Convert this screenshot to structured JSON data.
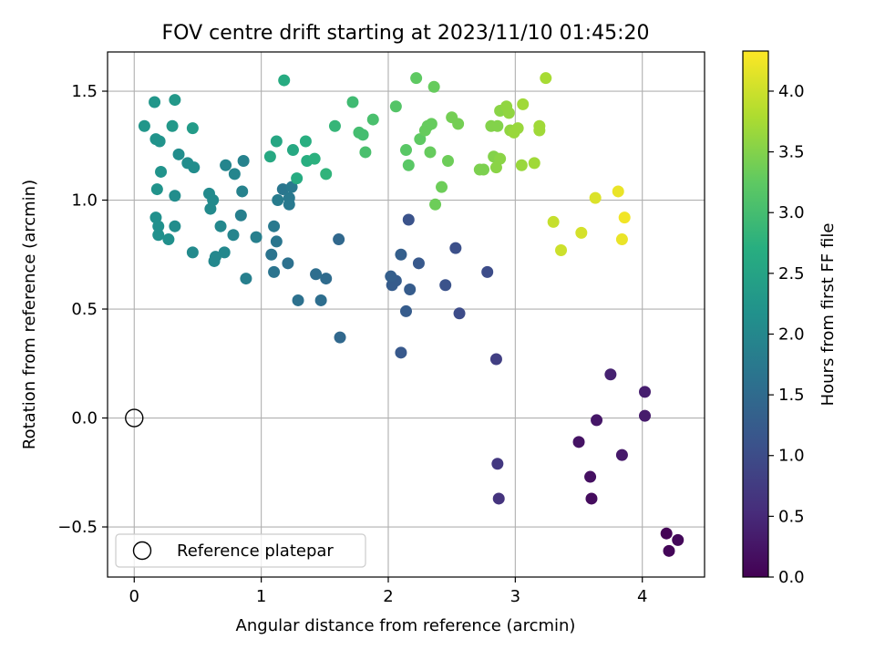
{
  "chart_data": {
    "type": "scatter",
    "title": "FOV centre drift starting at 2023/11/10 01:45:20",
    "xlabel": "Angular distance from reference (arcmin)",
    "ylabel": "Rotation from reference (arcmin)",
    "xlim": [
      -0.21,
      4.49
    ],
    "ylim": [
      -0.73,
      1.68
    ],
    "xticks": [
      0,
      1,
      2,
      3,
      4
    ],
    "xtick_labels": [
      "0",
      "1",
      "2",
      "3",
      "4"
    ],
    "yticks": [
      -0.5,
      0.0,
      0.5,
      1.0,
      1.5
    ],
    "ytick_labels": [
      "−0.5",
      "0.0",
      "0.5",
      "1.0",
      "1.5"
    ],
    "grid": true,
    "legend": {
      "position": "lower-left",
      "entries": [
        {
          "label": "Reference platepar",
          "marker": "open-circle"
        }
      ]
    },
    "colorbar": {
      "label": "Hours from first FF file",
      "colormap": "viridis",
      "range": [
        0.0,
        4.33
      ],
      "ticks": [
        0.0,
        0.5,
        1.0,
        1.5,
        2.0,
        2.5,
        3.0,
        3.5,
        4.0
      ],
      "tick_labels": [
        "0.0",
        "0.5",
        "1.0",
        "1.5",
        "2.0",
        "2.5",
        "3.0",
        "3.5",
        "4.0"
      ]
    },
    "reference_point": {
      "x": 0.0,
      "y": 0.0
    },
    "points": [
      {
        "x": 4.19,
        "y": -0.53,
        "c": 0.03
      },
      {
        "x": 4.21,
        "y": -0.61,
        "c": 0.06
      },
      {
        "x": 4.28,
        "y": -0.56,
        "c": 0.09
      },
      {
        "x": 3.6,
        "y": -0.37,
        "c": 0.14
      },
      {
        "x": 3.59,
        "y": -0.27,
        "c": 0.18
      },
      {
        "x": 3.5,
        "y": -0.11,
        "c": 0.22
      },
      {
        "x": 3.64,
        "y": -0.01,
        "c": 0.26
      },
      {
        "x": 3.84,
        "y": -0.17,
        "c": 0.3
      },
      {
        "x": 4.02,
        "y": 0.01,
        "c": 0.33
      },
      {
        "x": 4.02,
        "y": 0.12,
        "c": 0.36
      },
      {
        "x": 3.75,
        "y": 0.2,
        "c": 0.4
      },
      {
        "x": 2.87,
        "y": -0.37,
        "c": 0.65
      },
      {
        "x": 2.86,
        "y": -0.21,
        "c": 0.7
      },
      {
        "x": 2.85,
        "y": 0.27,
        "c": 0.8
      },
      {
        "x": 2.56,
        "y": 0.48,
        "c": 1.0
      },
      {
        "x": 2.78,
        "y": 0.67,
        "c": 1.0
      },
      {
        "x": 2.53,
        "y": 0.78,
        "c": 1.05
      },
      {
        "x": 2.45,
        "y": 0.61,
        "c": 1.1
      },
      {
        "x": 2.16,
        "y": 0.91,
        "c": 1.1
      },
      {
        "x": 2.1,
        "y": 0.3,
        "c": 1.2
      },
      {
        "x": 2.14,
        "y": 0.49,
        "c": 1.25
      },
      {
        "x": 2.24,
        "y": 0.71,
        "c": 1.2
      },
      {
        "x": 2.17,
        "y": 0.59,
        "c": 1.25
      },
      {
        "x": 2.03,
        "y": 0.61,
        "c": 1.25
      },
      {
        "x": 2.06,
        "y": 0.63,
        "c": 1.25
      },
      {
        "x": 2.02,
        "y": 0.65,
        "c": 1.3
      },
      {
        "x": 2.1,
        "y": 0.75,
        "c": 1.3
      },
      {
        "x": 1.62,
        "y": 0.37,
        "c": 1.45
      },
      {
        "x": 1.61,
        "y": 0.82,
        "c": 1.45
      },
      {
        "x": 1.51,
        "y": 0.64,
        "c": 1.5
      },
      {
        "x": 1.47,
        "y": 0.54,
        "c": 1.55
      },
      {
        "x": 1.43,
        "y": 0.66,
        "c": 1.55
      },
      {
        "x": 1.29,
        "y": 0.54,
        "c": 1.6
      },
      {
        "x": 1.21,
        "y": 0.71,
        "c": 1.6
      },
      {
        "x": 1.1,
        "y": 0.67,
        "c": 1.65
      },
      {
        "x": 1.08,
        "y": 0.75,
        "c": 1.65
      },
      {
        "x": 1.12,
        "y": 0.81,
        "c": 1.7
      },
      {
        "x": 1.1,
        "y": 0.88,
        "c": 1.75
      },
      {
        "x": 1.22,
        "y": 0.98,
        "c": 1.75
      },
      {
        "x": 1.17,
        "y": 1.05,
        "c": 1.7
      },
      {
        "x": 1.24,
        "y": 1.06,
        "c": 1.75
      },
      {
        "x": 1.22,
        "y": 1.01,
        "c": 1.75
      },
      {
        "x": 1.13,
        "y": 1.0,
        "c": 1.8
      },
      {
        "x": 0.96,
        "y": 0.83,
        "c": 1.85
      },
      {
        "x": 0.88,
        "y": 0.64,
        "c": 1.85
      },
      {
        "x": 0.84,
        "y": 0.93,
        "c": 1.85
      },
      {
        "x": 0.85,
        "y": 1.04,
        "c": 1.9
      },
      {
        "x": 0.86,
        "y": 1.18,
        "c": 1.9
      },
      {
        "x": 0.79,
        "y": 1.12,
        "c": 1.95
      },
      {
        "x": 0.72,
        "y": 1.16,
        "c": 1.95
      },
      {
        "x": 0.78,
        "y": 0.84,
        "c": 1.95
      },
      {
        "x": 0.71,
        "y": 0.76,
        "c": 2.0
      },
      {
        "x": 0.64,
        "y": 0.74,
        "c": 2.0
      },
      {
        "x": 0.63,
        "y": 0.72,
        "c": 2.0
      },
      {
        "x": 0.68,
        "y": 0.88,
        "c": 2.0
      },
      {
        "x": 0.59,
        "y": 1.03,
        "c": 2.05
      },
      {
        "x": 0.62,
        "y": 1.0,
        "c": 2.05
      },
      {
        "x": 0.6,
        "y": 0.96,
        "c": 2.05
      },
      {
        "x": 0.46,
        "y": 0.76,
        "c": 2.05
      },
      {
        "x": 0.47,
        "y": 1.15,
        "c": 2.1
      },
      {
        "x": 0.42,
        "y": 1.17,
        "c": 2.1
      },
      {
        "x": 0.35,
        "y": 1.21,
        "c": 2.1
      },
      {
        "x": 0.32,
        "y": 1.02,
        "c": 2.1
      },
      {
        "x": 0.32,
        "y": 0.88,
        "c": 2.1
      },
      {
        "x": 0.27,
        "y": 0.82,
        "c": 2.15
      },
      {
        "x": 0.19,
        "y": 0.84,
        "c": 2.15
      },
      {
        "x": 0.19,
        "y": 0.88,
        "c": 2.15
      },
      {
        "x": 0.17,
        "y": 0.92,
        "c": 2.15
      },
      {
        "x": 0.18,
        "y": 1.05,
        "c": 2.2
      },
      {
        "x": 0.21,
        "y": 1.13,
        "c": 2.2
      },
      {
        "x": 0.17,
        "y": 1.28,
        "c": 2.2
      },
      {
        "x": 0.2,
        "y": 1.27,
        "c": 2.2
      },
      {
        "x": 0.08,
        "y": 1.34,
        "c": 2.25
      },
      {
        "x": 0.16,
        "y": 1.45,
        "c": 2.25
      },
      {
        "x": 0.32,
        "y": 1.46,
        "c": 2.3
      },
      {
        "x": 0.3,
        "y": 1.34,
        "c": 2.3
      },
      {
        "x": 0.46,
        "y": 1.33,
        "c": 2.35
      },
      {
        "x": 1.18,
        "y": 1.55,
        "c": 2.65
      },
      {
        "x": 1.12,
        "y": 1.27,
        "c": 2.55
      },
      {
        "x": 1.07,
        "y": 1.2,
        "c": 2.6
      },
      {
        "x": 1.25,
        "y": 1.23,
        "c": 2.6
      },
      {
        "x": 1.28,
        "y": 1.1,
        "c": 2.65
      },
      {
        "x": 1.35,
        "y": 1.27,
        "c": 2.7
      },
      {
        "x": 1.36,
        "y": 1.18,
        "c": 2.7
      },
      {
        "x": 1.42,
        "y": 1.19,
        "c": 2.75
      },
      {
        "x": 1.51,
        "y": 1.12,
        "c": 2.8
      },
      {
        "x": 1.58,
        "y": 1.34,
        "c": 2.85
      },
      {
        "x": 1.72,
        "y": 1.45,
        "c": 2.95
      },
      {
        "x": 1.77,
        "y": 1.31,
        "c": 3.0
      },
      {
        "x": 1.8,
        "y": 1.3,
        "c": 3.0
      },
      {
        "x": 1.82,
        "y": 1.22,
        "c": 3.05
      },
      {
        "x": 1.88,
        "y": 1.37,
        "c": 3.05
      },
      {
        "x": 2.06,
        "y": 1.43,
        "c": 3.15
      },
      {
        "x": 2.14,
        "y": 1.23,
        "c": 3.2
      },
      {
        "x": 2.16,
        "y": 1.16,
        "c": 3.2
      },
      {
        "x": 2.22,
        "y": 1.56,
        "c": 3.25
      },
      {
        "x": 2.25,
        "y": 1.28,
        "c": 3.25
      },
      {
        "x": 2.29,
        "y": 1.32,
        "c": 3.3
      },
      {
        "x": 2.31,
        "y": 1.34,
        "c": 3.3
      },
      {
        "x": 2.34,
        "y": 1.35,
        "c": 3.3
      },
      {
        "x": 2.33,
        "y": 1.22,
        "c": 3.3
      },
      {
        "x": 2.36,
        "y": 1.52,
        "c": 3.3
      },
      {
        "x": 2.37,
        "y": 0.98,
        "c": 3.35
      },
      {
        "x": 2.42,
        "y": 1.06,
        "c": 3.35
      },
      {
        "x": 2.47,
        "y": 1.18,
        "c": 3.35
      },
      {
        "x": 2.5,
        "y": 1.38,
        "c": 3.4
      },
      {
        "x": 2.55,
        "y": 1.35,
        "c": 3.4
      },
      {
        "x": 2.72,
        "y": 1.14,
        "c": 3.45
      },
      {
        "x": 2.75,
        "y": 1.14,
        "c": 3.45
      },
      {
        "x": 2.81,
        "y": 1.34,
        "c": 3.5
      },
      {
        "x": 2.83,
        "y": 1.2,
        "c": 3.5
      },
      {
        "x": 2.86,
        "y": 1.34,
        "c": 3.5
      },
      {
        "x": 2.85,
        "y": 1.15,
        "c": 3.55
      },
      {
        "x": 2.88,
        "y": 1.19,
        "c": 3.55
      },
      {
        "x": 2.88,
        "y": 1.41,
        "c": 3.55
      },
      {
        "x": 2.93,
        "y": 1.43,
        "c": 3.6
      },
      {
        "x": 2.95,
        "y": 1.4,
        "c": 3.6
      },
      {
        "x": 2.96,
        "y": 1.32,
        "c": 3.6
      },
      {
        "x": 2.99,
        "y": 1.31,
        "c": 3.65
      },
      {
        "x": 3.02,
        "y": 1.33,
        "c": 3.65
      },
      {
        "x": 3.05,
        "y": 1.16,
        "c": 3.65
      },
      {
        "x": 3.06,
        "y": 1.44,
        "c": 3.7
      },
      {
        "x": 3.15,
        "y": 1.17,
        "c": 3.7
      },
      {
        "x": 3.19,
        "y": 1.34,
        "c": 3.7
      },
      {
        "x": 3.19,
        "y": 1.32,
        "c": 3.7
      },
      {
        "x": 3.24,
        "y": 1.56,
        "c": 3.75
      },
      {
        "x": 3.3,
        "y": 0.9,
        "c": 3.95
      },
      {
        "x": 3.36,
        "y": 0.77,
        "c": 4.0
      },
      {
        "x": 3.52,
        "y": 0.85,
        "c": 4.05
      },
      {
        "x": 3.63,
        "y": 1.01,
        "c": 4.1
      },
      {
        "x": 3.81,
        "y": 1.04,
        "c": 4.2
      },
      {
        "x": 3.84,
        "y": 0.82,
        "c": 4.2
      },
      {
        "x": 3.86,
        "y": 0.92,
        "c": 4.25
      }
    ]
  }
}
